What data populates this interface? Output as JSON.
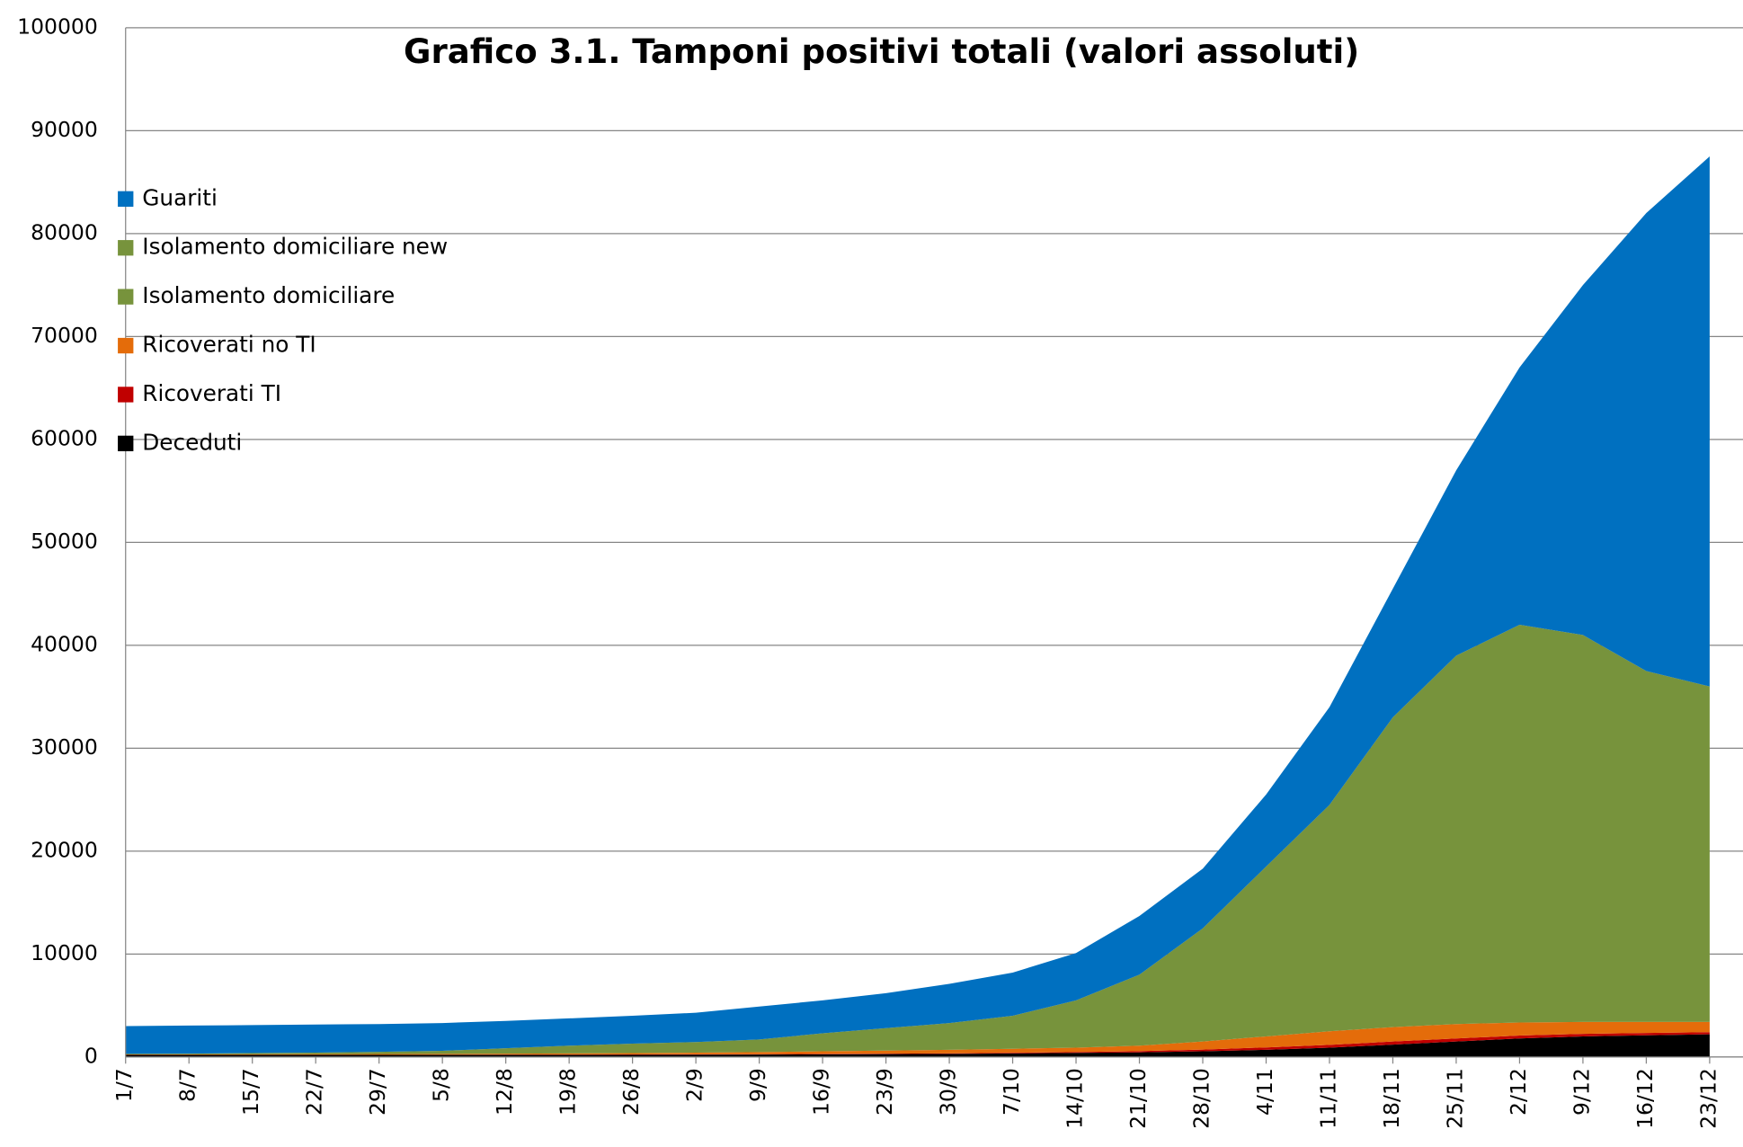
{
  "chart_data": {
    "type": "stacked_area",
    "title": "Grafico 3.1. Tamponi positivi totali (valori assoluti)",
    "categories": [
      "1/7",
      "8/7",
      "15/7",
      "22/7",
      "29/7",
      "5/8",
      "12/8",
      "19/8",
      "26/8",
      "2/9",
      "9/9",
      "16/9",
      "23/9",
      "30/9",
      "7/10",
      "14/10",
      "21/10",
      "28/10",
      "4/11",
      "11/11",
      "18/11",
      "25/11",
      "2/12",
      "9/12",
      "16/12",
      "23/12"
    ],
    "series": [
      {
        "name": "Guariti",
        "color": "#0070c0",
        "values": [
          2700,
          2720,
          2720,
          2730,
          2700,
          2700,
          2650,
          2650,
          2700,
          2850,
          3200,
          3200,
          3400,
          3800,
          4200,
          4600,
          5700,
          5800,
          7000,
          9500,
          12500,
          18000,
          25000,
          34000,
          44500,
          51500
        ]
      },
      {
        "name": "Isolamento domiciliare new",
        "color": "#77933c",
        "values": [
          0,
          0,
          0,
          0,
          0,
          0,
          0,
          0,
          0,
          0,
          0,
          0,
          0,
          0,
          0,
          0,
          0,
          0,
          0,
          0,
          0,
          0,
          0,
          0,
          0,
          0
        ]
      },
      {
        "name": "Isolamento domiciliare",
        "color": "#77933c",
        "values": [
          50,
          70,
          110,
          140,
          210,
          300,
          530,
          750,
          920,
          1030,
          1220,
          1750,
          2180,
          2600,
          3200,
          4600,
          6900,
          11000,
          16500,
          22000,
          30100,
          35800,
          38650,
          37600,
          34100,
          32600
        ]
      },
      {
        "name": "Ricoverati no TI",
        "color": "#e46c0a",
        "values": [
          40,
          50,
          60,
          70,
          80,
          80,
          95,
          120,
          135,
          160,
          205,
          250,
          295,
          350,
          390,
          420,
          530,
          780,
          1070,
          1320,
          1400,
          1400,
          1270,
          1150,
          1070,
          990
        ]
      },
      {
        "name": "Ricoverati TI",
        "color": "#c00000",
        "values": [
          10,
          10,
          10,
          10,
          10,
          10,
          15,
          20,
          25,
          30,
          35,
          40,
          45,
          50,
          60,
          80,
          120,
          170,
          230,
          280,
          300,
          300,
          280,
          250,
          230,
          210
        ]
      },
      {
        "name": "Deceduti",
        "color": "#000000",
        "values": [
          200,
          200,
          200,
          200,
          200,
          210,
          210,
          210,
          220,
          230,
          240,
          260,
          280,
          300,
          350,
          400,
          450,
          550,
          700,
          900,
          1200,
          1500,
          1800,
          2000,
          2100,
          2200
        ]
      }
    ],
    "ylim": [
      0,
      100000
    ],
    "yticks": [
      0,
      10000,
      20000,
      30000,
      40000,
      50000,
      60000,
      70000,
      80000,
      90000,
      100000
    ],
    "grid": true
  }
}
